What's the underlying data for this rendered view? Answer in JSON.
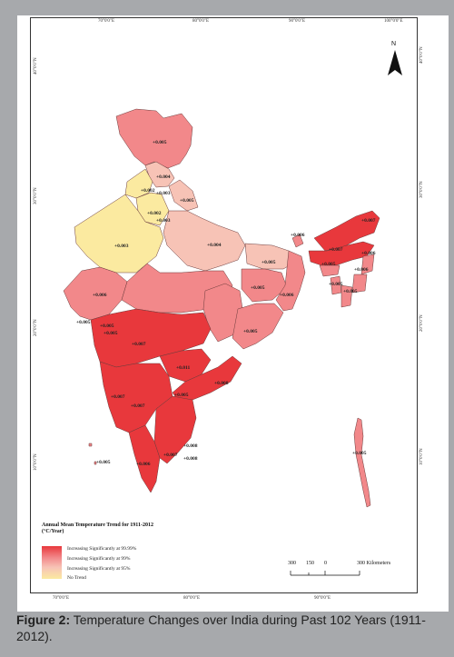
{
  "map": {
    "legend": {
      "title_line1": "Annual Mean Temperature Trend for 1911-2012",
      "title_line2": "(°C/Year)",
      "items": [
        "Increasing Significantly at 99.99%",
        "Increasing Significantly at 99%",
        "Increasing Significantly at 95%",
        "No Trend"
      ],
      "colors": [
        "#e8383c",
        "#f2888a",
        "#f7c3b6",
        "#fbeaa0"
      ]
    },
    "scale": {
      "labels": [
        "300",
        "150",
        "0",
        "300 Kilometers"
      ]
    },
    "north_label": "N",
    "axis_ticks": {
      "top": [
        "70°0'0\"E",
        "80°0'0\"E",
        "90°0'0\"E",
        "100°0'0\"E"
      ],
      "bottom": [
        "70°0'0\"E",
        "80°0'0\"E",
        "90°0'0\"E"
      ],
      "left": [
        "40°0'0\"N",
        "30°0'0\"N",
        "20°0'0\"N",
        "10°0'0\"N"
      ],
      "right": [
        "40°0'0\"N",
        "30°0'0\"N",
        "20°0'0\"N",
        "10°0'0\"N"
      ]
    },
    "region_labels": [
      "+0.005",
      "+0.004",
      "+0.002",
      "+0.003",
      "+0.002",
      "+0.003",
      "+0.005",
      "+0.003",
      "+0.004",
      "+0.006",
      "+0.007",
      "+0.007",
      "+0.005",
      "+0.006",
      "+0.005",
      "+0.006",
      "+0.005",
      "+0.005",
      "+0.005",
      "+0.005",
      "+0.006",
      "+0.006",
      "+0.005",
      "+0.005",
      "+0.007",
      "+0.005",
      "+0.011",
      "+0.008",
      "+0.007",
      "+0.007",
      "+0.005",
      "+0.008",
      "+0.007",
      "+0.008",
      "+0.006",
      "+0.005",
      "+0.005"
    ]
  },
  "caption": {
    "label": "Figure 2:",
    "text": " Temperature Changes over India during Past 102 Years (1911-2012)."
  }
}
